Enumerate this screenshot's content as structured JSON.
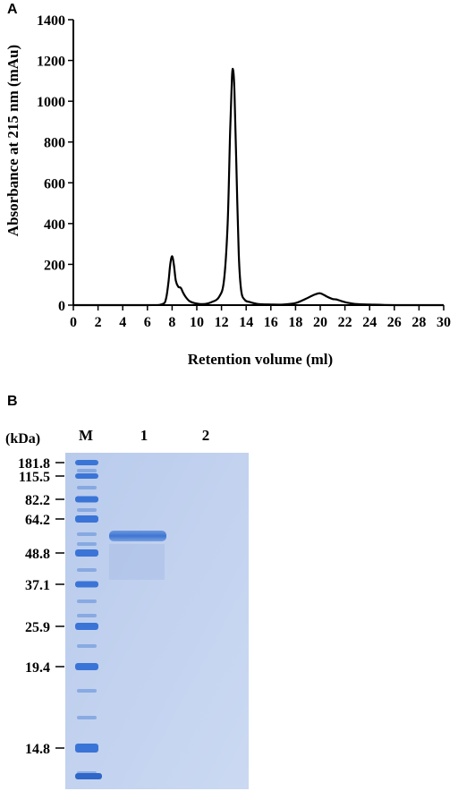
{
  "panels": {
    "a_label": "A",
    "b_label": "B"
  },
  "chart_data": {
    "type": "line",
    "title": "",
    "xlabel": "Retention volume (ml)",
    "ylabel": "Absorbance at 215 nm (mAu)",
    "xlim": [
      0,
      30
    ],
    "ylim": [
      0,
      1400
    ],
    "xticks": [
      0,
      2,
      4,
      6,
      8,
      10,
      12,
      14,
      16,
      18,
      20,
      22,
      24,
      26,
      28,
      30
    ],
    "yticks": [
      0,
      200,
      400,
      600,
      800,
      1000,
      1200,
      1400
    ],
    "grid": false,
    "series": [
      {
        "x": [
          0,
          6,
          7.2,
          7.5,
          7.7,
          7.85,
          8.0,
          8.15,
          8.3,
          8.5,
          8.7,
          8.9,
          9.1,
          9.4,
          9.8,
          10.5,
          11.2,
          11.8,
          12.2,
          12.5,
          12.7,
          12.85,
          12.95,
          13.05,
          13.2,
          13.4,
          13.6,
          13.9,
          14.3,
          15,
          16,
          17,
          18,
          18.8,
          19.3,
          19.7,
          20.0,
          20.3,
          20.6,
          21.0,
          21.3,
          21.7,
          22.2,
          23,
          24,
          26,
          30
        ],
        "y": [
          0,
          0,
          5,
          30,
          110,
          200,
          240,
          195,
          120,
          90,
          85,
          60,
          40,
          20,
          10,
          5,
          15,
          40,
          120,
          400,
          850,
          1120,
          1150,
          1050,
          700,
          250,
          70,
          25,
          15,
          5,
          3,
          3,
          10,
          30,
          45,
          55,
          58,
          50,
          40,
          30,
          28,
          20,
          12,
          5,
          3,
          0,
          0
        ]
      }
    ]
  },
  "gel": {
    "unit_label": "(kDa)",
    "lane_labels": [
      "M",
      "1",
      "2"
    ],
    "marker_kda": [
      "181.8",
      "115.5",
      "82.2",
      "64.2",
      "48.8",
      "37.1",
      "25.9",
      "19.4",
      "14.8"
    ],
    "colors": {
      "gel_bg": "#bfd0ee",
      "band": "#3f78d2",
      "marker_band": "#3a74d6"
    }
  }
}
